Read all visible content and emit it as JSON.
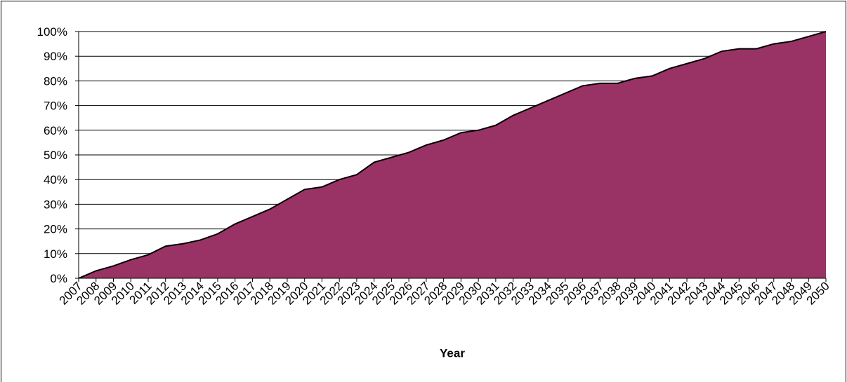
{
  "chart_data": {
    "type": "area",
    "x_label": "Year",
    "categories": [
      "2007",
      "2008",
      "2009",
      "2010",
      "2011",
      "2012",
      "2013",
      "2014",
      "2015",
      "2016",
      "2017",
      "2018",
      "2019",
      "2020",
      "2021",
      "2022",
      "2023",
      "2024",
      "2025",
      "2026",
      "2027",
      "2028",
      "2029",
      "2030",
      "2031",
      "2032",
      "2033",
      "2034",
      "2035",
      "2036",
      "2037",
      "2038",
      "2039",
      "2040",
      "2041",
      "2042",
      "2043",
      "2044",
      "2045",
      "2046",
      "2047",
      "2048",
      "2049",
      "2050"
    ],
    "values": [
      0,
      3,
      5,
      7.5,
      9.5,
      13,
      14,
      15.5,
      18,
      22,
      25,
      28,
      32,
      36,
      37,
      40,
      42,
      47,
      49,
      51,
      54,
      56,
      59,
      60,
      62,
      66,
      69,
      72,
      75,
      78,
      79,
      79,
      81,
      82,
      85,
      87,
      89,
      92,
      93,
      93,
      95,
      96,
      98,
      100
    ],
    "color": "#993366",
    "ylim": [
      0,
      100
    ],
    "yticks": [
      {
        "value": 0,
        "label": "0%"
      },
      {
        "value": 10,
        "label": "10%"
      },
      {
        "value": 20,
        "label": "20%"
      },
      {
        "value": 30,
        "label": "30%"
      },
      {
        "value": 40,
        "label": "40%"
      },
      {
        "value": 50,
        "label": "50%"
      },
      {
        "value": 60,
        "label": "60%"
      },
      {
        "value": 70,
        "label": "70%"
      },
      {
        "value": 80,
        "label": "80%"
      },
      {
        "value": 90,
        "label": "90%"
      },
      {
        "value": 100,
        "label": "100%"
      }
    ],
    "grid": true
  }
}
